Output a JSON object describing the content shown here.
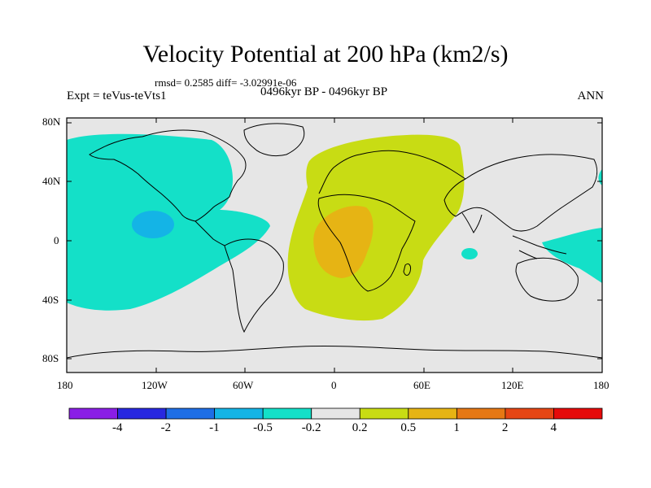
{
  "title": "Velocity Potential at 200 hPa (km2/s)",
  "stats_line": "rmsd= 0.2585 diff= -3.02991e-06",
  "experiment_label": "Expt = teVus-teVts1",
  "period_label": "0496kyr BP - 0496kyr BP",
  "season_label": "ANN",
  "axes": {
    "y_ticks": [
      "80N",
      "40N",
      "0",
      "40S",
      "80S"
    ],
    "x_ticks": [
      "180",
      "120W",
      "60W",
      "0",
      "60E",
      "120E",
      "180"
    ]
  },
  "colorbar": {
    "colors": [
      "#8a1ee6",
      "#2828e0",
      "#1e6ee6",
      "#14b4e6",
      "#14e0c8",
      "#e6e6e6",
      "#c8dc14",
      "#e6b414",
      "#e67814",
      "#e64614",
      "#e60a0a"
    ],
    "labels": [
      "-4",
      "-2",
      "-1",
      "-0.5",
      "-0.2",
      "0.2",
      "0.5",
      "1",
      "2",
      "4"
    ]
  },
  "colors": {
    "background_field": "#e6e6e6",
    "negative_field": "#14e0c8",
    "negative_core": "#14b4e6",
    "positive_field": "#c8dc14",
    "positive_core": "#e6b414"
  }
}
